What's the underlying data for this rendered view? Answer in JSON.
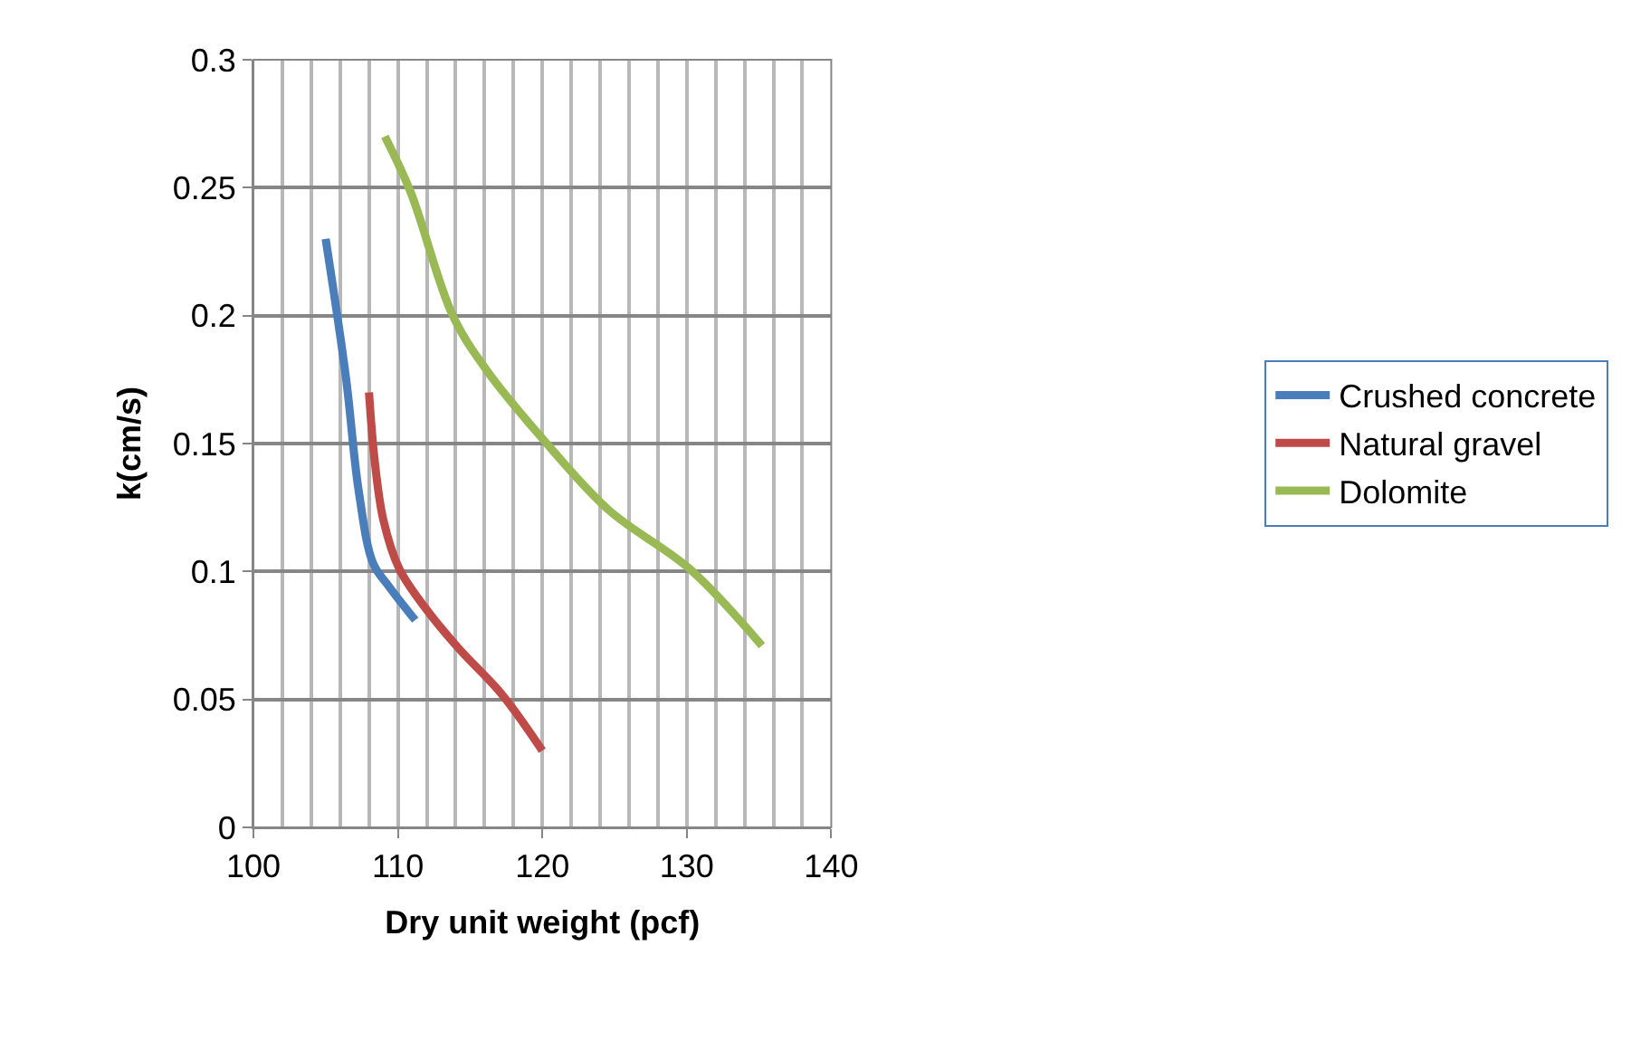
{
  "chart_data": {
    "type": "line",
    "xlabel": "Dry unit weight (pcf)",
    "ylabel": "k(cm/s)",
    "xlim": [
      100,
      140
    ],
    "xticks": [
      100,
      110,
      120,
      130,
      140
    ],
    "ylim": [
      0,
      0.3
    ],
    "yticks": [
      0,
      0.05,
      0.1,
      0.15,
      0.2,
      0.25,
      0.3
    ],
    "grid": true,
    "legend": "right",
    "marker": "none",
    "line_style": "solid",
    "series": [
      {
        "name": "Crushed concrete",
        "color": "#4a7ebb",
        "x": [
          105,
          106.4,
          107.3,
          108.3,
          109.4,
          111.2
        ],
        "values": [
          0.23,
          0.176,
          0.131,
          0.103,
          0.094,
          0.081
        ]
      },
      {
        "name": "Natural gravel",
        "color": "#be4b48",
        "x": [
          108,
          108.4,
          109,
          110.1,
          112,
          114.2,
          117.2,
          120
        ],
        "values": [
          0.17,
          0.143,
          0.12,
          0.101,
          0.085,
          0.07,
          0.052,
          0.03
        ]
      },
      {
        "name": "Dolomite",
        "color": "#98b954",
        "x": [
          109.1,
          110.9,
          113.8,
          116.1,
          120,
          124.6,
          130.2,
          135.2
        ],
        "values": [
          0.27,
          0.248,
          0.2,
          0.179,
          0.152,
          0.124,
          0.101,
          0.071
        ]
      }
    ]
  }
}
